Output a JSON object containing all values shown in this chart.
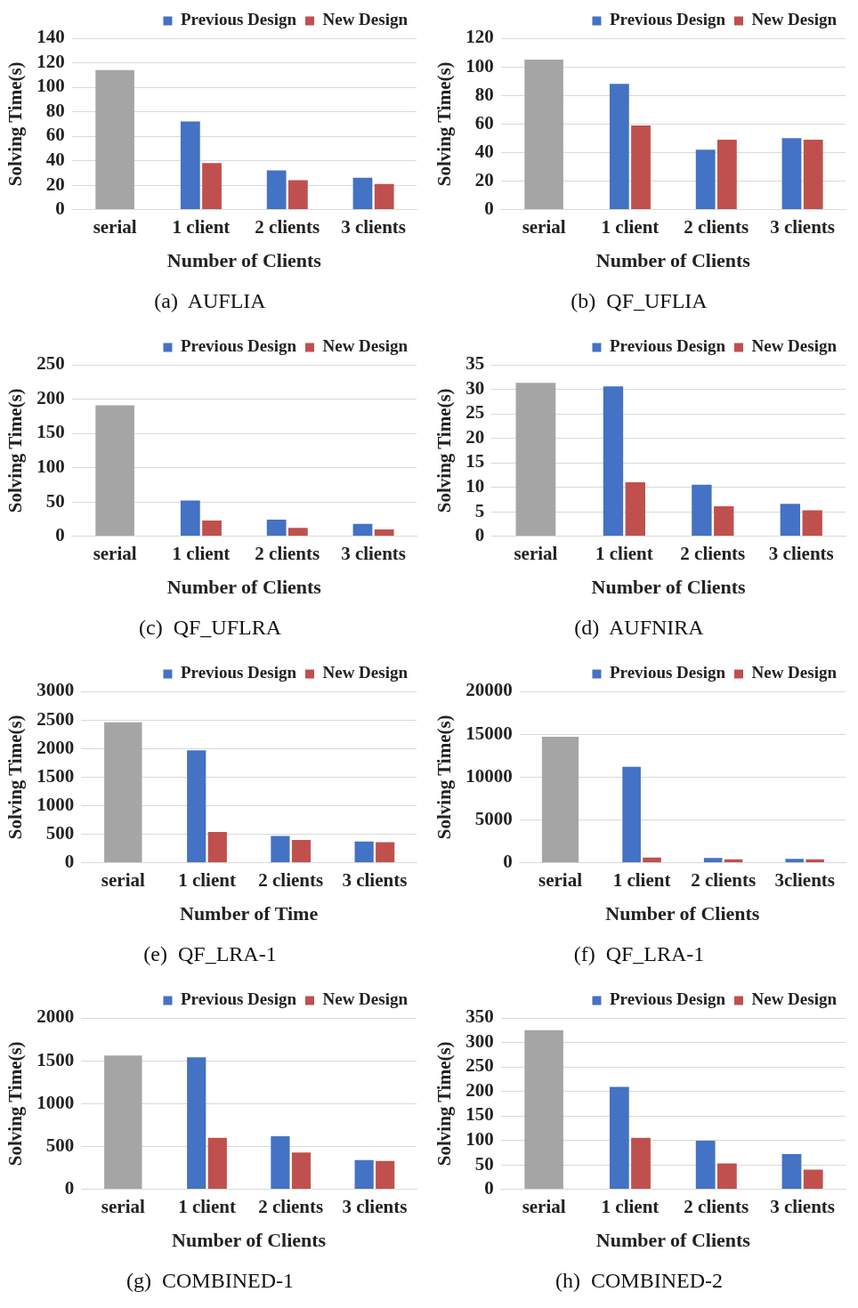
{
  "chart_data": [
    {
      "type": "bar",
      "title": "(a)  AUFLIA",
      "xlabel": "Number of Clients",
      "ylabel": "Solving Time(s)",
      "categories": [
        "serial",
        "1 client",
        "2 clients",
        "3 clients"
      ],
      "series": [
        {
          "color": "#a5a5a5",
          "values": [
            114,
            null,
            null,
            null
          ]
        },
        {
          "name": "Previous Design",
          "color": "#4472c4",
          "values": [
            null,
            72,
            32,
            26
          ]
        },
        {
          "name": "New Design",
          "color": "#c0504d",
          "values": [
            null,
            38,
            24,
            21
          ]
        }
      ],
      "ylim": [
        0,
        140
      ],
      "yticks": [
        0,
        20,
        40,
        60,
        80,
        100,
        120,
        140
      ],
      "grid": "y",
      "legend": "top right"
    },
    {
      "type": "bar",
      "title": "(b)  QF_UFLIA",
      "xlabel": "Number of Clients",
      "ylabel": "Solving Time(s)",
      "categories": [
        "serial",
        "1 client",
        "2 clients",
        "3 clients"
      ],
      "series": [
        {
          "color": "#a5a5a5",
          "values": [
            105,
            null,
            null,
            null
          ]
        },
        {
          "name": "Previous Design",
          "color": "#4472c4",
          "values": [
            null,
            88,
            42,
            50
          ]
        },
        {
          "name": "New Design",
          "color": "#c0504d",
          "values": [
            null,
            59,
            49,
            49
          ]
        }
      ],
      "ylim": [
        0,
        120
      ],
      "yticks": [
        0,
        20,
        40,
        60,
        80,
        100,
        120
      ],
      "grid": "y",
      "legend": "top right"
    },
    {
      "type": "bar",
      "title": "(c)  QF_UFLRA",
      "xlabel": "Number of Clients",
      "ylabel": "Solving Time(s)",
      "categories": [
        "serial",
        "1 client",
        "2 clients",
        "3 clients"
      ],
      "series": [
        {
          "color": "#a5a5a5",
          "values": [
            191,
            null,
            null,
            null
          ]
        },
        {
          "name": "Previous Design",
          "color": "#4472c4",
          "values": [
            null,
            52,
            24,
            18
          ]
        },
        {
          "name": "New Design",
          "color": "#c0504d",
          "values": [
            null,
            23,
            12,
            10
          ]
        }
      ],
      "ylim": [
        0,
        250
      ],
      "yticks": [
        0,
        50,
        100,
        150,
        200,
        250
      ],
      "grid": "y",
      "legend": "top right"
    },
    {
      "type": "bar",
      "title": "(d)  AUFNIRA",
      "xlabel": "Number of Clients",
      "ylabel": "Solving Time(s)",
      "categories": [
        "serial",
        "1 client",
        "2 clients",
        "3 clients"
      ],
      "series": [
        {
          "color": "#a5a5a5",
          "values": [
            31.3,
            null,
            null,
            null
          ]
        },
        {
          "name": "Previous Design",
          "color": "#4472c4",
          "values": [
            null,
            30.6,
            10.5,
            6.6
          ]
        },
        {
          "name": "New Design",
          "color": "#c0504d",
          "values": [
            null,
            11,
            6.1,
            5.3
          ]
        }
      ],
      "ylim": [
        0,
        35
      ],
      "yticks": [
        0,
        5,
        10,
        15,
        20,
        25,
        30,
        35
      ],
      "grid": "y",
      "legend": "top right"
    },
    {
      "type": "bar",
      "title": "(e)  QF_LRA-1",
      "xlabel": "Number of Time",
      "ylabel": "Solving Time(s)",
      "categories": [
        "serial",
        "1 client",
        "2 clients",
        "3 clients"
      ],
      "series": [
        {
          "color": "#a5a5a5",
          "values": [
            2460,
            null,
            null,
            null
          ]
        },
        {
          "name": "Previous Design",
          "color": "#4472c4",
          "values": [
            null,
            1970,
            470,
            370
          ]
        },
        {
          "name": "New Design",
          "color": "#c0504d",
          "values": [
            null,
            540,
            400,
            360
          ]
        }
      ],
      "ylim": [
        0,
        3000
      ],
      "yticks": [
        0,
        500,
        1000,
        1500,
        2000,
        2500,
        3000
      ],
      "grid": "y",
      "legend": "top right"
    },
    {
      "type": "bar",
      "title": "(f)  QF_LRA-1",
      "xlabel": "Number of Clients",
      "ylabel": "Solving Time(s)",
      "categories": [
        "serial",
        "1 client",
        "2 clients",
        "3clients"
      ],
      "series": [
        {
          "color": "#a5a5a5",
          "values": [
            14700,
            null,
            null,
            null
          ]
        },
        {
          "name": "Previous Design",
          "color": "#4472c4",
          "values": [
            null,
            11200,
            550,
            450
          ]
        },
        {
          "name": "New Design",
          "color": "#c0504d",
          "values": [
            null,
            600,
            400,
            400
          ]
        }
      ],
      "ylim": [
        0,
        20000
      ],
      "yticks": [
        0,
        5000,
        10000,
        15000,
        20000
      ],
      "grid": "y",
      "legend": "top right"
    },
    {
      "type": "bar",
      "title": "(g)  COMBINED-1",
      "xlabel": "Number of Clients",
      "ylabel": "Solving Time(s)",
      "categories": [
        "serial",
        "1 client",
        "2 clients",
        "3 clients"
      ],
      "series": [
        {
          "color": "#a5a5a5",
          "values": [
            1560,
            null,
            null,
            null
          ]
        },
        {
          "name": "Previous Design",
          "color": "#4472c4",
          "values": [
            null,
            1540,
            620,
            340
          ]
        },
        {
          "name": "New Design",
          "color": "#c0504d",
          "values": [
            null,
            600,
            430,
            330
          ]
        }
      ],
      "ylim": [
        0,
        2000
      ],
      "yticks": [
        0,
        500,
        1000,
        1500,
        2000
      ],
      "grid": "y",
      "legend": "top right"
    },
    {
      "type": "bar",
      "title": "(h)  COMBINED-2",
      "xlabel": "Number of Clients",
      "ylabel": "Solving Time(s)",
      "categories": [
        "serial",
        "1 client",
        "2 clients",
        "3 clients"
      ],
      "series": [
        {
          "color": "#a5a5a5",
          "values": [
            325,
            null,
            null,
            null
          ]
        },
        {
          "name": "Previous Design",
          "color": "#4472c4",
          "values": [
            null,
            209,
            99,
            72
          ]
        },
        {
          "name": "New Design",
          "color": "#c0504d",
          "values": [
            null,
            105,
            53,
            40
          ]
        }
      ],
      "ylim": [
        0,
        350
      ],
      "yticks": [
        0,
        50,
        100,
        150,
        200,
        250,
        300,
        350
      ],
      "grid": "y",
      "legend": "top right"
    }
  ]
}
